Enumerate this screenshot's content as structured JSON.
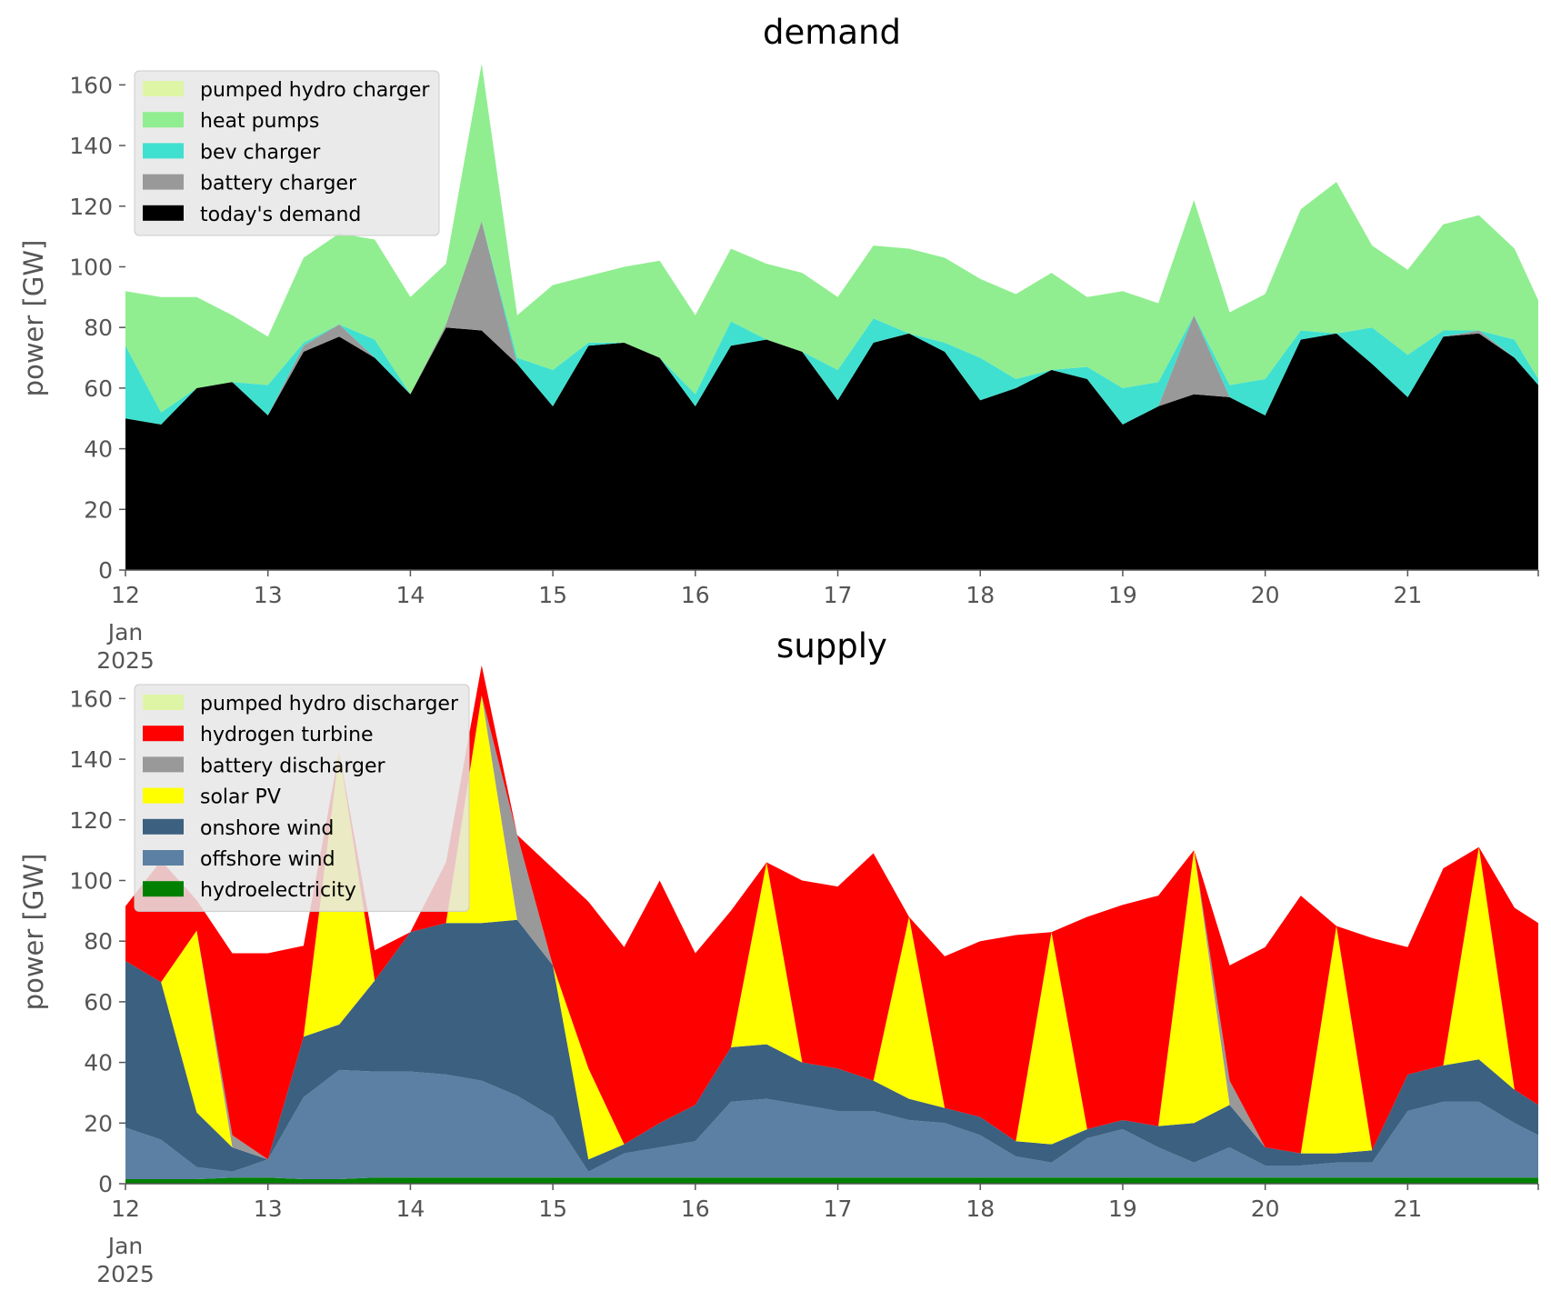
{
  "figure": {
    "background": "#ffffff"
  },
  "chart_data": [
    {
      "type": "area",
      "stacked": true,
      "title": "demand",
      "ylabel": "power [GW]",
      "ylim": [
        0,
        170
      ],
      "yticks": [
        0,
        20,
        40,
        60,
        80,
        100,
        120,
        140,
        160
      ],
      "xlim": [
        "2025-01-12 00:00",
        "2025-01-21 22:00"
      ],
      "xticks": [
        "12",
        "13",
        "14",
        "15",
        "16",
        "17",
        "18",
        "19",
        "20",
        "21"
      ],
      "xtick_sub": [
        "Jan",
        "2025"
      ],
      "grid": false,
      "legend_position": "top-left",
      "x": [
        "2025-01-12 00:00",
        "2025-01-12 06:00",
        "2025-01-12 12:00",
        "2025-01-12 18:00",
        "2025-01-13 00:00",
        "2025-01-13 06:00",
        "2025-01-13 12:00",
        "2025-01-13 18:00",
        "2025-01-14 00:00",
        "2025-01-14 06:00",
        "2025-01-14 12:00",
        "2025-01-14 18:00",
        "2025-01-15 00:00",
        "2025-01-15 06:00",
        "2025-01-15 12:00",
        "2025-01-15 18:00",
        "2025-01-16 00:00",
        "2025-01-16 06:00",
        "2025-01-16 12:00",
        "2025-01-16 18:00",
        "2025-01-17 00:00",
        "2025-01-17 06:00",
        "2025-01-17 12:00",
        "2025-01-17 18:00",
        "2025-01-18 00:00",
        "2025-01-18 06:00",
        "2025-01-18 12:00",
        "2025-01-18 18:00",
        "2025-01-19 00:00",
        "2025-01-19 06:00",
        "2025-01-19 12:00",
        "2025-01-19 18:00",
        "2025-01-20 00:00",
        "2025-01-20 06:00",
        "2025-01-20 12:00",
        "2025-01-20 18:00",
        "2025-01-21 00:00",
        "2025-01-21 06:00",
        "2025-01-21 12:00",
        "2025-01-21 18:00",
        "2025-01-21 22:00"
      ],
      "series": [
        {
          "name": "today's demand",
          "color": "#000000",
          "values": [
            50,
            48,
            60,
            62,
            51,
            72,
            77,
            70,
            58,
            80,
            79,
            68,
            54,
            74,
            75,
            70,
            54,
            74,
            76,
            72,
            56,
            75,
            78,
            72,
            56,
            60,
            66,
            63,
            48,
            54,
            58,
            57,
            51,
            76,
            78,
            68,
            57,
            77,
            78,
            70,
            61
          ]
        },
        {
          "name": "battery charger",
          "color": "#999999",
          "values": [
            0,
            0,
            0,
            0,
            0,
            2,
            4,
            0,
            0,
            1,
            36,
            0,
            0,
            0,
            0,
            0,
            0,
            0,
            0,
            0,
            0,
            0,
            0,
            0,
            0,
            0,
            0,
            0,
            0,
            0,
            26,
            0,
            0,
            0,
            0,
            0,
            0,
            0,
            1,
            0,
            0
          ]
        },
        {
          "name": "bev charger",
          "color": "#40e0d0",
          "values": [
            24,
            4,
            0,
            0,
            10,
            1,
            0,
            6,
            0,
            0,
            0,
            2,
            12,
            1,
            0,
            0,
            4,
            8,
            0,
            0,
            10,
            8,
            0,
            3,
            14,
            3,
            0,
            4,
            12,
            8,
            0,
            4,
            12,
            3,
            0,
            12,
            14,
            2,
            0,
            6,
            2
          ]
        },
        {
          "name": "heat pumps",
          "color": "#90ee90",
          "values": [
            18,
            38,
            30,
            22,
            16,
            28,
            30,
            33,
            32,
            20,
            52,
            14,
            28,
            22,
            25,
            32,
            26,
            24,
            25,
            26,
            24,
            24,
            28,
            28,
            26,
            28,
            32,
            23,
            32,
            26,
            38,
            24,
            28,
            40,
            50,
            27,
            28,
            35,
            38,
            30,
            26
          ]
        },
        {
          "name": "pumped hydro charger",
          "color": "#ddf5a5",
          "values": [
            0,
            0,
            0,
            0,
            0,
            0,
            0,
            0,
            0,
            0,
            0,
            0,
            0,
            0,
            0,
            0,
            0,
            0,
            0,
            0,
            0,
            0,
            0,
            0,
            0,
            0,
            0,
            0,
            0,
            0,
            0,
            0,
            0,
            0,
            0,
            0,
            0,
            0,
            0,
            0,
            0
          ]
        }
      ]
    },
    {
      "type": "area",
      "stacked": true,
      "title": "supply",
      "ylabel": "power [GW]",
      "ylim": [
        0,
        170
      ],
      "yticks": [
        0,
        20,
        40,
        60,
        80,
        100,
        120,
        140,
        160
      ],
      "xlim": [
        "2025-01-12 00:00",
        "2025-01-21 22:00"
      ],
      "xticks": [
        "12",
        "13",
        "14",
        "15",
        "16",
        "17",
        "18",
        "19",
        "20",
        "21"
      ],
      "xtick_sub": [
        "Jan",
        "2025"
      ],
      "grid": false,
      "legend_position": "top-left",
      "x": [
        "2025-01-12 00:00",
        "2025-01-12 06:00",
        "2025-01-12 12:00",
        "2025-01-12 18:00",
        "2025-01-13 00:00",
        "2025-01-13 06:00",
        "2025-01-13 12:00",
        "2025-01-13 18:00",
        "2025-01-14 00:00",
        "2025-01-14 06:00",
        "2025-01-14 12:00",
        "2025-01-14 18:00",
        "2025-01-15 00:00",
        "2025-01-15 06:00",
        "2025-01-15 12:00",
        "2025-01-15 18:00",
        "2025-01-16 00:00",
        "2025-01-16 06:00",
        "2025-01-16 12:00",
        "2025-01-16 18:00",
        "2025-01-17 00:00",
        "2025-01-17 06:00",
        "2025-01-17 12:00",
        "2025-01-17 18:00",
        "2025-01-18 00:00",
        "2025-01-18 06:00",
        "2025-01-18 12:00",
        "2025-01-18 18:00",
        "2025-01-19 00:00",
        "2025-01-19 06:00",
        "2025-01-19 12:00",
        "2025-01-19 18:00",
        "2025-01-20 00:00",
        "2025-01-20 06:00",
        "2025-01-20 12:00",
        "2025-01-20 18:00",
        "2025-01-21 00:00",
        "2025-01-21 06:00",
        "2025-01-21 12:00",
        "2025-01-21 18:00",
        "2025-01-21 22:00"
      ],
      "series": [
        {
          "name": "hydroelectricity",
          "color": "#008000",
          "values": [
            1.5,
            1.5,
            1.5,
            2,
            2,
            1.5,
            1.5,
            2,
            2,
            2,
            2,
            2,
            2,
            2,
            2,
            2,
            2,
            2,
            2,
            2,
            2,
            2,
            2,
            2,
            2,
            2,
            2,
            2,
            2,
            2,
            2,
            2,
            2,
            2,
            2,
            2,
            2,
            2,
            2,
            2,
            2
          ]
        },
        {
          "name": "offshore wind",
          "color": "#5b80a3",
          "values": [
            17,
            13,
            4,
            2,
            6,
            27,
            36,
            35,
            35,
            34,
            32,
            27,
            20,
            2,
            8,
            10,
            12,
            25,
            26,
            24,
            22,
            22,
            19,
            18,
            14,
            7,
            5,
            13,
            16,
            10,
            5,
            10,
            4,
            4,
            5,
            5,
            22,
            25,
            25,
            18,
            14
          ]
        },
        {
          "name": "onshore wind",
          "color": "#3c6080",
          "values": [
            55,
            52,
            18,
            8,
            0,
            20,
            15,
            30,
            46,
            50,
            52,
            58,
            50,
            4,
            3,
            8,
            12,
            18,
            18,
            14,
            14,
            10,
            7,
            5,
            6,
            5,
            6,
            3,
            3,
            7,
            13,
            14,
            6,
            4,
            3,
            4,
            12,
            12,
            14,
            11,
            10
          ]
        },
        {
          "name": "solar PV",
          "color": "#ffff00",
          "values": [
            0,
            0,
            60,
            0,
            0,
            0,
            90,
            0,
            0,
            0,
            75,
            0,
            0,
            30,
            0,
            0,
            0,
            0,
            60,
            0,
            0,
            0,
            60,
            0,
            0,
            0,
            70,
            0,
            0,
            0,
            90,
            0,
            0,
            0,
            75,
            0,
            0,
            0,
            70,
            0,
            0
          ]
        },
        {
          "name": "battery discharger",
          "color": "#999999",
          "values": [
            0,
            0,
            0,
            4,
            0,
            0,
            0,
            0,
            0,
            0,
            0,
            28,
            0,
            0,
            0,
            0,
            0,
            0,
            0,
            0,
            0,
            0,
            0,
            0,
            0,
            0,
            0,
            0,
            0,
            0,
            0,
            8,
            0,
            0,
            0,
            0,
            0,
            0,
            0,
            0,
            0
          ]
        },
        {
          "name": "hydrogen turbine",
          "color": "#ff0000",
          "values": [
            18,
            40,
            10,
            60,
            68,
            30,
            0,
            10,
            0,
            20,
            10,
            0,
            32,
            55,
            65,
            80,
            50,
            45,
            0,
            60,
            60,
            75,
            0,
            50,
            58,
            68,
            0,
            70,
            71,
            76,
            0,
            38,
            66,
            85,
            0,
            70,
            42,
            65,
            0,
            60,
            60
          ]
        },
        {
          "name": "pumped hydro discharger",
          "color": "#ddf5a5",
          "values": [
            0,
            0,
            0,
            0,
            0,
            0,
            0,
            0,
            0,
            0,
            0,
            0,
            0,
            0,
            0,
            0,
            0,
            0,
            0,
            0,
            0,
            0,
            0,
            0,
            0,
            0,
            0,
            0,
            0,
            0,
            0,
            0,
            0,
            0,
            0,
            0,
            0,
            0,
            0,
            0,
            0
          ]
        }
      ]
    }
  ],
  "legends": [
    [
      "pumped hydro charger",
      "heat pumps",
      "bev charger",
      "battery charger",
      "today's demand"
    ],
    [
      "pumped hydro discharger",
      "hydrogen turbine",
      "battery discharger",
      "solar PV",
      "onshore wind",
      "offshore wind",
      "hydroelectricity"
    ]
  ]
}
